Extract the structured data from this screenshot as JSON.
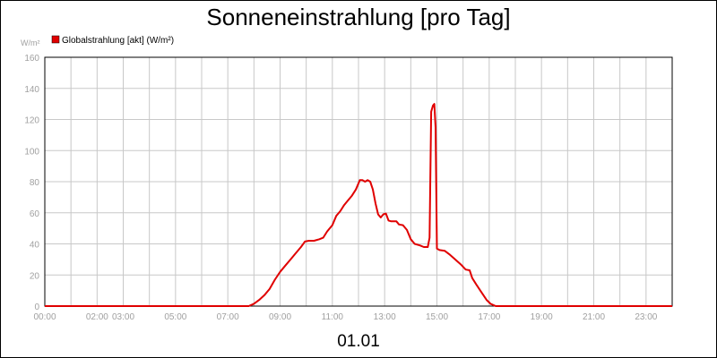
{
  "chart_data": {
    "type": "line",
    "title": "Sonneneinstrahlung [pro Tag]",
    "ylabel": "W/m²",
    "xlabel": "01.01",
    "ylim": [
      0,
      160
    ],
    "xlim": [
      0,
      24
    ],
    "yticks": [
      0,
      20,
      40,
      60,
      80,
      100,
      120,
      140,
      160
    ],
    "xticks": [
      {
        "x": 0,
        "label": "00:00"
      },
      {
        "x": 2,
        "label": "02:00"
      },
      {
        "x": 3,
        "label": "03:00"
      },
      {
        "x": 5,
        "label": "05:00"
      },
      {
        "x": 7,
        "label": "07:00"
      },
      {
        "x": 9,
        "label": "09:00"
      },
      {
        "x": 11,
        "label": "11:00"
      },
      {
        "x": 13,
        "label": "13:00"
      },
      {
        "x": 15,
        "label": "15:00"
      },
      {
        "x": 17,
        "label": "17:00"
      },
      {
        "x": 19,
        "label": "19:00"
      },
      {
        "x": 21,
        "label": "21:00"
      },
      {
        "x": 23,
        "label": "23:00"
      }
    ],
    "grid": true,
    "legend": "top-left",
    "series": [
      {
        "name": "Globalstrahlung [akt] (W/m²)",
        "color": "#e00000",
        "points": [
          [
            0,
            0
          ],
          [
            7.8,
            0
          ],
          [
            8.0,
            1.5
          ],
          [
            8.2,
            4
          ],
          [
            8.4,
            7
          ],
          [
            8.6,
            11
          ],
          [
            8.8,
            17
          ],
          [
            9.0,
            22
          ],
          [
            9.2,
            26
          ],
          [
            9.4,
            30
          ],
          [
            9.6,
            34
          ],
          [
            9.8,
            38
          ],
          [
            9.95,
            41.5
          ],
          [
            10.1,
            42
          ],
          [
            10.3,
            42
          ],
          [
            10.5,
            43
          ],
          [
            10.65,
            44
          ],
          [
            10.8,
            48
          ],
          [
            11.0,
            52
          ],
          [
            11.15,
            58
          ],
          [
            11.3,
            61
          ],
          [
            11.45,
            65
          ],
          [
            11.6,
            68
          ],
          [
            11.75,
            71
          ],
          [
            11.9,
            75
          ],
          [
            12.05,
            81
          ],
          [
            12.15,
            81
          ],
          [
            12.25,
            80
          ],
          [
            12.35,
            81
          ],
          [
            12.45,
            80
          ],
          [
            12.55,
            75
          ],
          [
            12.65,
            66
          ],
          [
            12.75,
            59
          ],
          [
            12.85,
            57
          ],
          [
            12.95,
            59
          ],
          [
            13.05,
            59.5
          ],
          [
            13.15,
            55
          ],
          [
            13.25,
            54.5
          ],
          [
            13.35,
            54.5
          ],
          [
            13.45,
            54.5
          ],
          [
            13.55,
            52.5
          ],
          [
            13.7,
            52
          ],
          [
            13.85,
            49
          ],
          [
            14.0,
            43
          ],
          [
            14.15,
            40
          ],
          [
            14.35,
            39
          ],
          [
            14.5,
            38
          ],
          [
            14.65,
            38
          ],
          [
            14.72,
            44
          ],
          [
            14.78,
            125
          ],
          [
            14.85,
            129
          ],
          [
            14.9,
            130
          ],
          [
            14.95,
            115
          ],
          [
            15.0,
            37
          ],
          [
            15.1,
            36
          ],
          [
            15.3,
            35.5
          ],
          [
            15.5,
            33
          ],
          [
            15.7,
            30
          ],
          [
            15.9,
            27
          ],
          [
            16.1,
            23.5
          ],
          [
            16.25,
            23
          ],
          [
            16.35,
            18
          ],
          [
            16.5,
            14
          ],
          [
            16.7,
            9
          ],
          [
            16.9,
            4
          ],
          [
            17.05,
            1.5
          ],
          [
            17.25,
            0
          ],
          [
            24,
            0
          ]
        ]
      }
    ]
  }
}
